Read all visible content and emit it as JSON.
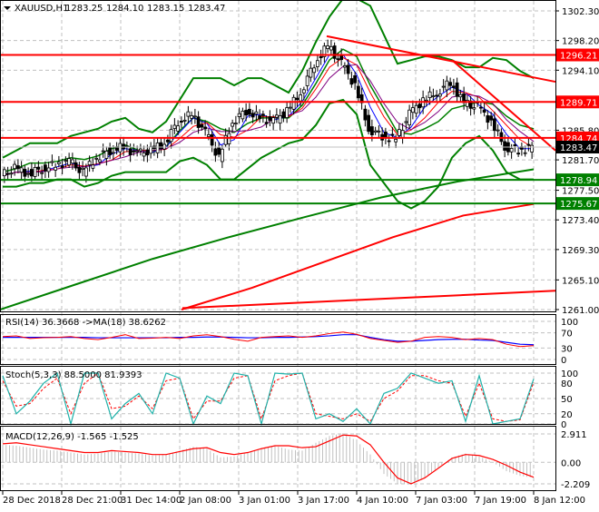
{
  "header": {
    "symbol": "XAUUSD,H1",
    "open": "1283.25",
    "high": "1284.10",
    "low": "1283.15",
    "close": "1283.47"
  },
  "colors": {
    "bull_bear": "#000000",
    "support": "#008000",
    "resistance": "#ff0000",
    "rsi": "#ff0000",
    "rsi_ma": "#0000ff",
    "stoch_main": "#20b2aa",
    "stoch_signal": "#ff0000",
    "macd_hist": "#c0c0c0",
    "macd_signal": "#ff0000",
    "grid": "#c0c0c0"
  },
  "chart_data": [
    {
      "type": "candlestick",
      "title": "XAUUSD,H1",
      "ylim": [
        1261.0,
        1302.3
      ],
      "y_ticks": [
        "1302.30",
        "1298.20",
        "1294.10",
        "1285.80",
        "1281.70",
        "1277.50",
        "1273.40",
        "1269.30",
        "1265.10",
        "1261.00"
      ],
      "x_ticks": [
        "28 Dec 2018",
        "28 Dec 21:00",
        "31 Dec 14:00",
        "2 Jan 08:00",
        "3 Jan 01:00",
        "3 Jan 17:00",
        "4 Jan 10:00",
        "7 Jan 03:00",
        "7 Jan 19:00",
        "8 Jan 12:00"
      ],
      "current_price": "1283.47",
      "levels": [
        {
          "value": 1296.21,
          "label": "1296.21",
          "kind": "resistance"
        },
        {
          "value": 1289.71,
          "label": "1289.71",
          "kind": "resistance"
        },
        {
          "value": 1284.74,
          "label": "1284.74",
          "kind": "resistance"
        },
        {
          "value": 1278.94,
          "label": "1278.94",
          "kind": "support"
        },
        {
          "value": 1275.67,
          "label": "1275.67",
          "kind": "support"
        }
      ],
      "close": [
        1279.5,
        1280.5,
        1279.8,
        1280.5,
        1281,
        1281.5,
        1280,
        1282,
        1283,
        1283.5,
        1282.5,
        1283,
        1284,
        1287,
        1288,
        1285.5,
        1282,
        1287,
        1288.5,
        1287.5,
        1287,
        1288.5,
        1291,
        1295,
        1297.5,
        1295,
        1292,
        1286,
        1285,
        1284.5,
        1288,
        1290,
        1291,
        1292.5,
        1289.5,
        1289,
        1287,
        1283.5,
        1283,
        1283.5
      ],
      "bollinger_upper": [
        1282,
        1283,
        1284,
        1284,
        1284,
        1285,
        1285.5,
        1286,
        1287,
        1287.5,
        1286,
        1285.5,
        1287,
        1290,
        1293,
        1293,
        1293,
        1292,
        1293,
        1293,
        1292,
        1291,
        1294,
        1298,
        1301.5,
        1304,
        1304,
        1303,
        1299,
        1295,
        1295.5,
        1296,
        1296,
        1295.5,
        1294.5,
        1294.5,
        1295.8,
        1295.5,
        1294,
        1293
      ],
      "bollinger_lower": [
        1278,
        1278,
        1278.5,
        1278.5,
        1279,
        1279,
        1278,
        1278.5,
        1279.5,
        1280,
        1280,
        1280,
        1280,
        1281.5,
        1282,
        1281,
        1279,
        1279,
        1280.5,
        1282,
        1283,
        1284,
        1284.5,
        1286.5,
        1289.5,
        1290,
        1288,
        1281,
        1278.5,
        1276,
        1275,
        1276,
        1278,
        1282,
        1284,
        1285,
        1283,
        1280,
        1279,
        1279
      ],
      "ma_long_green": [
        1261,
        1264.5,
        1268,
        1271,
        1273.8,
        1276.5,
        1278.7,
        1280.4
      ],
      "ma_long_red": [
        1261,
        1264,
        1267.5,
        1271,
        1274,
        1275.6
      ],
      "trend_lines": [
        {
          "from": [
            23.8,
            1298.8
          ],
          "to": [
            40.6,
            1292.5
          ]
        },
        {
          "from": [
            33,
            1295.5
          ],
          "to": [
            40.6,
            1283
          ]
        },
        {
          "from": [
            13.2,
            1261.2
          ],
          "to": [
            40.6,
            1263.6
          ]
        }
      ]
    },
    {
      "type": "line",
      "title": "RSI(14) 36.3668  ->MA(18) 38.6262",
      "ylim": [
        0,
        100
      ],
      "y_ticks": [
        "100",
        "70",
        "30",
        "0"
      ],
      "series": [
        {
          "name": "RSI(14)",
          "values": [
            60,
            62,
            55,
            57,
            58,
            60,
            55,
            52,
            58,
            65,
            55,
            56,
            58,
            55,
            62,
            65,
            60,
            53,
            48,
            58,
            60,
            62,
            58,
            62,
            68,
            72,
            66,
            55,
            50,
            45,
            48,
            58,
            60,
            58,
            52,
            55,
            52,
            40,
            34,
            36.37
          ]
        },
        {
          "name": "MA(18)",
          "values": [
            58,
            58,
            58,
            58,
            58,
            58,
            58,
            57,
            57,
            57,
            57,
            57,
            57,
            58,
            58,
            59,
            59,
            58,
            57,
            57,
            58,
            58,
            59,
            60,
            62,
            65,
            65,
            58,
            52,
            48,
            48,
            50,
            52,
            53,
            53,
            51,
            50,
            45,
            40,
            38.63
          ]
        }
      ]
    },
    {
      "type": "line",
      "title": "Stoch(5,3,3) 88.5000 81.9393",
      "ylim": [
        0,
        100
      ],
      "y_ticks": [
        "100",
        "80",
        "50",
        "20",
        "0"
      ],
      "series": [
        {
          "name": "main",
          "values": [
            95,
            20,
            45,
            80,
            100,
            0,
            100,
            100,
            10,
            40,
            60,
            20,
            100,
            90,
            0,
            55,
            40,
            100,
            95,
            0,
            100,
            98,
            100,
            10,
            20,
            5,
            30,
            0,
            60,
            70,
            100,
            90,
            80,
            85,
            5,
            95,
            0,
            5,
            10,
            88.5
          ]
        },
        {
          "name": "signal",
          "values": [
            85,
            35,
            40,
            70,
            90,
            20,
            80,
            100,
            30,
            35,
            55,
            30,
            85,
            90,
            10,
            45,
            45,
            90,
            95,
            10,
            85,
            95,
            100,
            20,
            15,
            10,
            20,
            5,
            50,
            65,
            95,
            95,
            85,
            80,
            15,
            80,
            10,
            5,
            8,
            81.94
          ]
        }
      ]
    },
    {
      "type": "bar",
      "title": "MACD(12,26,9) -1.565 -1.525",
      "ylim": [
        -2.209,
        2.911
      ],
      "y_ticks": [
        "2.911",
        "0.00",
        "-2.209"
      ],
      "histogram": [
        1.8,
        1.7,
        1.5,
        1.3,
        1.2,
        1.0,
        0.8,
        0.9,
        1.1,
        1.0,
        0.9,
        0.7,
        0.8,
        1.2,
        1.6,
        1.4,
        0.5,
        0.6,
        1.0,
        1.4,
        1.7,
        1.3,
        1.2,
        2.0,
        2.7,
        3.0,
        2.2,
        0.8,
        -1.2,
        -2.2,
        -2.3,
        -1.6,
        -0.5,
        0.5,
        0.9,
        0.6,
        0.0,
        -0.9,
        -1.4,
        -1.565
      ],
      "signal": [
        1.9,
        2.0,
        1.8,
        1.6,
        1.4,
        1.2,
        1.0,
        1.0,
        1.2,
        1.1,
        1.0,
        0.8,
        0.8,
        1.1,
        1.4,
        1.5,
        1.0,
        0.8,
        1.0,
        1.4,
        1.7,
        1.7,
        1.5,
        1.6,
        2.2,
        2.8,
        2.7,
        1.8,
        0.0,
        -1.6,
        -2.2,
        -1.6,
        -0.6,
        0.4,
        0.8,
        0.7,
        0.3,
        -0.3,
        -1.0,
        -1.525
      ]
    }
  ]
}
